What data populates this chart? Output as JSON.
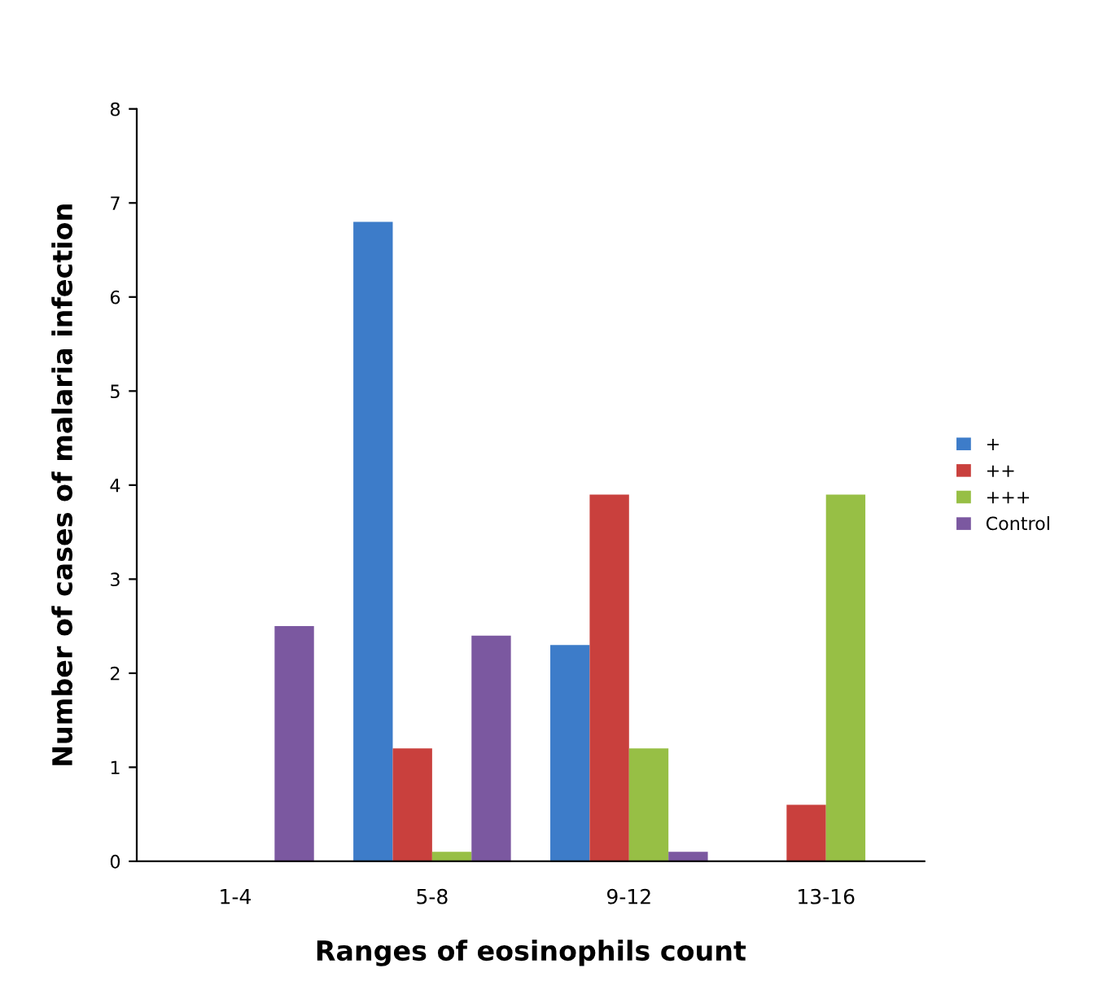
{
  "chart_data": {
    "type": "bar",
    "xlabel": "Ranges of eosinophils count",
    "ylabel": "Number of cases of malaria infection",
    "categories": [
      "1-4",
      "5-8",
      "9-12",
      "13-16"
    ],
    "series": [
      {
        "name": "+",
        "color": "#3d7cc9",
        "values": [
          null,
          6.8,
          2.3,
          null
        ]
      },
      {
        "name": "++",
        "color": "#c9403d",
        "values": [
          null,
          1.2,
          3.9,
          0.6
        ]
      },
      {
        "name": "+++",
        "color": "#97bf45",
        "values": [
          null,
          0.1,
          1.2,
          3.9
        ]
      },
      {
        "name": "Control",
        "color": "#7b58a0",
        "values": [
          2.5,
          2.4,
          0.1,
          null
        ]
      }
    ],
    "ylim": [
      0,
      8
    ],
    "yticks": [
      0,
      1,
      2,
      3,
      4,
      5,
      6,
      7,
      8
    ],
    "grid": false,
    "legend": "right"
  }
}
